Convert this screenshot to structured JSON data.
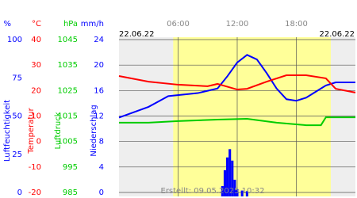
{
  "chart_data": {
    "type": "line",
    "date_left": "22.06.22",
    "date_right": "22.06.22",
    "footnote": "Erstellt: 09.05.2025 10:32",
    "xlim": [
      0,
      24
    ],
    "xticks": [
      {
        "value": 6,
        "label": "06:00"
      },
      {
        "value": 12,
        "label": "12:00"
      },
      {
        "value": 18,
        "label": "18:00"
      }
    ],
    "daylight": [
      5.5,
      21.5
    ],
    "grid": true,
    "axes": [
      {
        "label": "Luftfeuchtigkeit",
        "unit": "%",
        "color": "#0000ff",
        "ylim": [
          0,
          100
        ],
        "yticks": [
          100,
          75,
          50,
          25,
          0
        ]
      },
      {
        "label": "Temperatur",
        "unit": "°C",
        "color": "#ff0000",
        "ylim": [
          -20,
          40
        ],
        "yticks": [
          40,
          30,
          20,
          10,
          0,
          -10,
          -20
        ]
      },
      {
        "label": "Luftdruck",
        "unit": "hPa",
        "color": "#00cc00",
        "ylim": [
          985,
          1045
        ],
        "yticks": [
          1045,
          1035,
          1025,
          1015,
          1005,
          995,
          985
        ]
      },
      {
        "label": "Niederschlag",
        "unit": "mm/h",
        "color": "#0000ff",
        "ylim": [
          0,
          24
        ],
        "yticks": [
          24,
          20,
          16,
          12,
          8,
          4,
          0
        ]
      }
    ],
    "series": [
      {
        "name": "Luftfeuchtigkeit",
        "axis": 0,
        "kind": "line",
        "color": "#0000ff",
        "x": [
          0,
          3,
          5,
          8,
          10,
          11,
          12,
          13,
          14,
          15,
          16,
          17,
          18,
          19,
          20,
          21,
          22,
          24
        ],
        "values": [
          49,
          56,
          63,
          65,
          68,
          76,
          85,
          90,
          87,
          78,
          68,
          61,
          60,
          62,
          66,
          70,
          72,
          72
        ]
      },
      {
        "name": "Temperatur",
        "axis": 1,
        "kind": "line",
        "color": "#ff0000",
        "x": [
          0,
          3,
          6,
          9,
          10,
          12,
          13,
          15,
          17,
          19,
          21,
          22,
          24
        ],
        "values": [
          25.7,
          23.5,
          22.3,
          21.7,
          22.6,
          20.4,
          20.7,
          23.5,
          26,
          26,
          24.8,
          20.7,
          19.2
        ]
      },
      {
        "name": "Luftdruck",
        "axis": 2,
        "kind": "line",
        "color": "#00cc00",
        "x": [
          0,
          3,
          6,
          10,
          13,
          16,
          19,
          20.5,
          21,
          24
        ],
        "values": [
          1012.4,
          1012.4,
          1013,
          1013.6,
          1013.9,
          1012.4,
          1011.4,
          1011.4,
          1014.5,
          1014.5
        ]
      },
      {
        "name": "Niederschlag",
        "axis": 3,
        "kind": "bar",
        "color": "#0000ff",
        "x": [
          10.5,
          10.75,
          11,
          11.25,
          11.5,
          11.75,
          12,
          12.5,
          13
        ],
        "values": [
          1,
          3.5,
          5.5,
          6.8,
          5,
          2,
          0.5,
          0.3,
          0.2
        ]
      }
    ]
  }
}
